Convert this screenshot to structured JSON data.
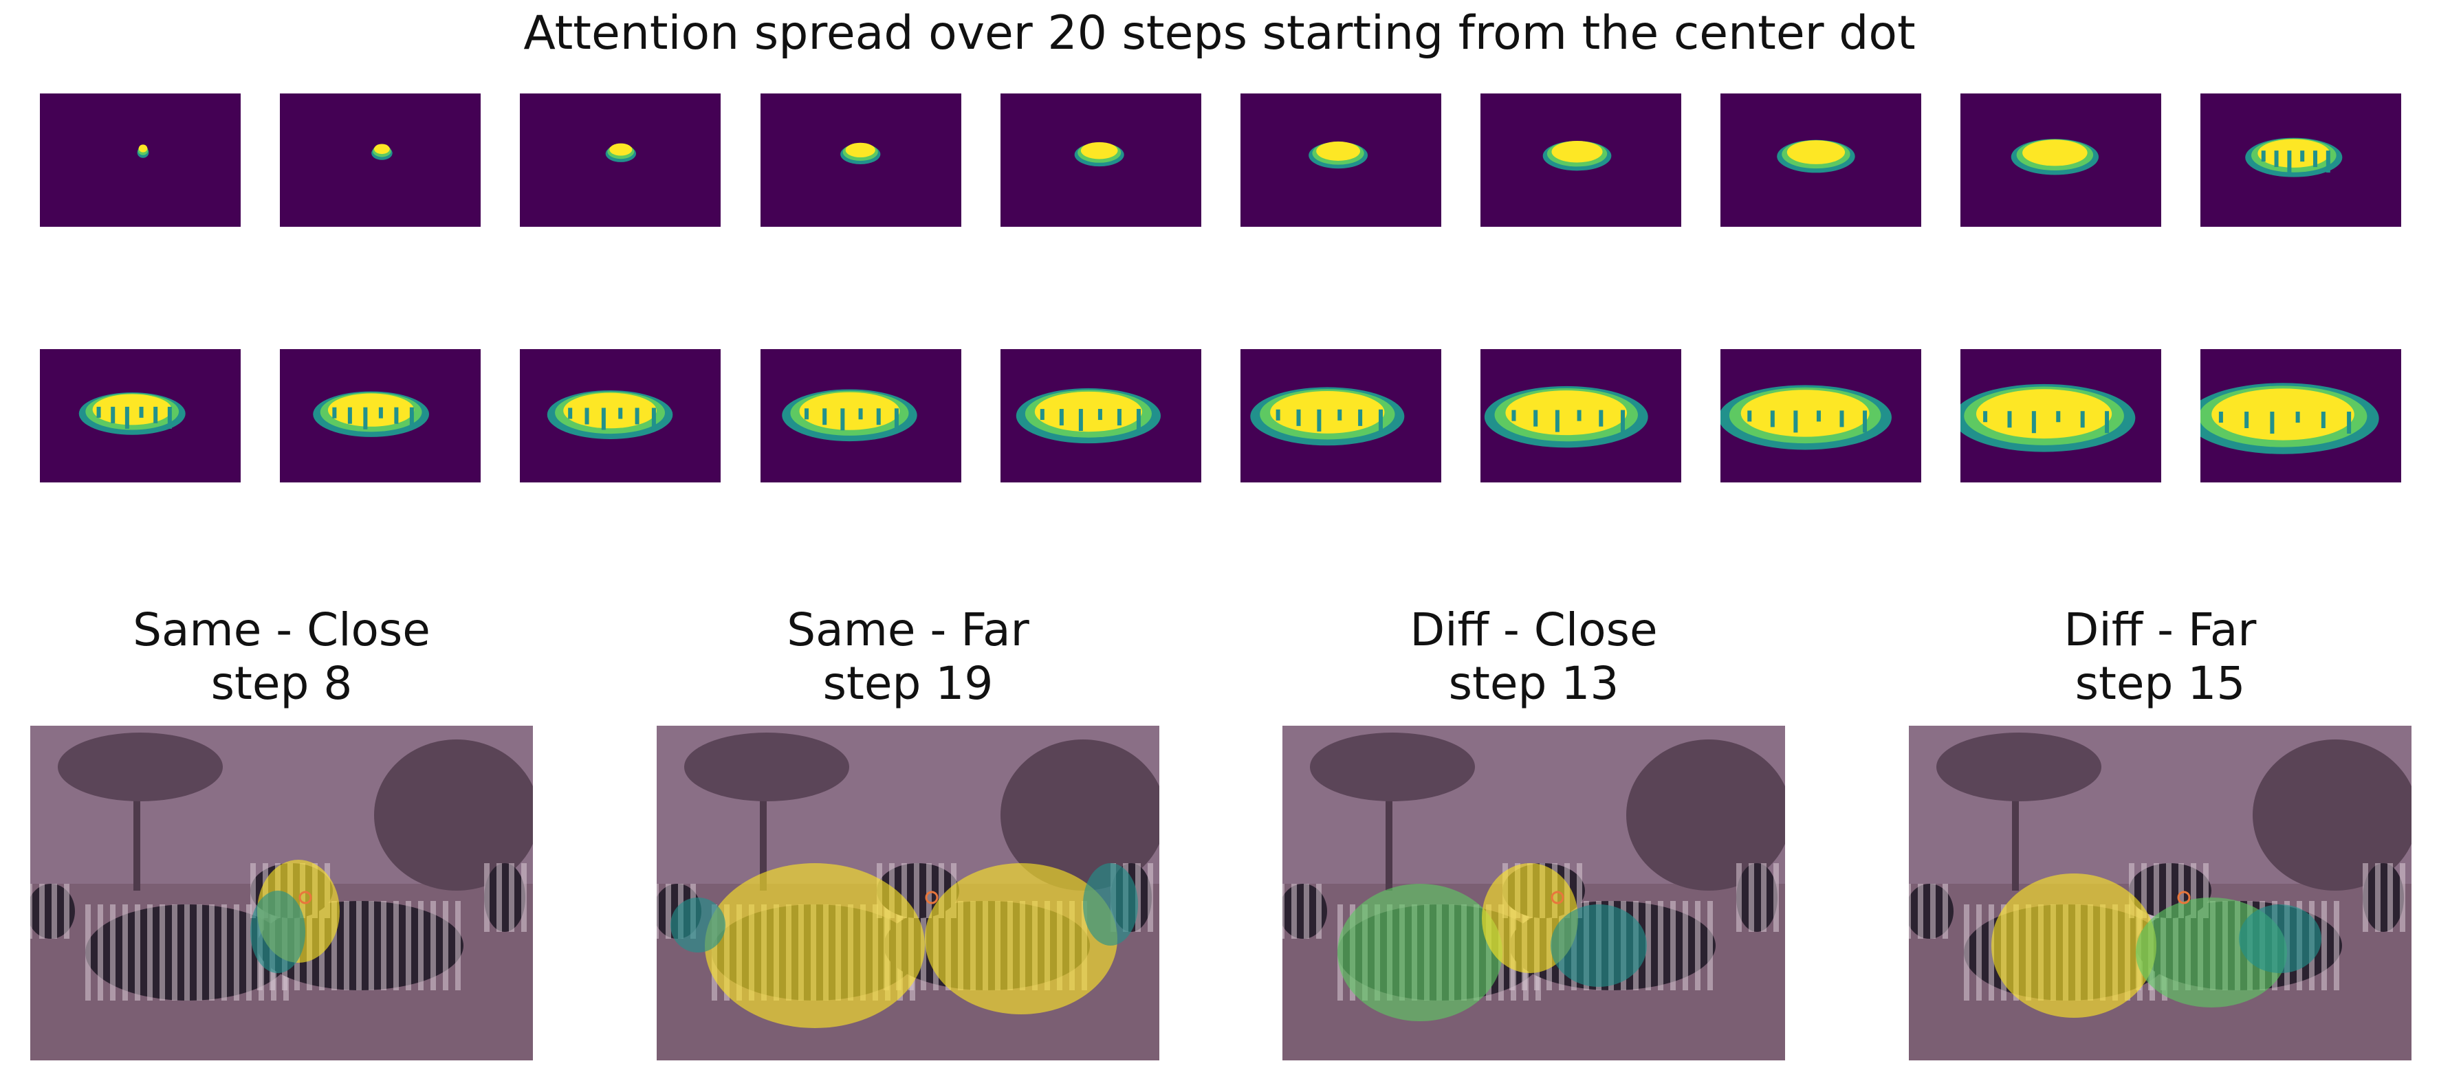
{
  "figure": {
    "title": "Attention spread over 20 steps starting from the center dot",
    "colormap": {
      "background": "#440154",
      "low": "#21918c",
      "mid": "#5ec962",
      "high": "#fde725"
    },
    "steps": [
      1,
      2,
      3,
      4,
      5,
      6,
      7,
      8,
      9,
      10,
      11,
      12,
      13,
      14,
      15,
      16,
      17,
      18,
      19,
      20
    ],
    "panels": [
      {
        "label": "Same - Close",
        "step_label": "step 8"
      },
      {
        "label": "Same - Far",
        "step_label": "step 19"
      },
      {
        "label": "Diff - Close",
        "step_label": "step 13"
      },
      {
        "label": "Diff - Far",
        "step_label": "step 15"
      }
    ]
  }
}
